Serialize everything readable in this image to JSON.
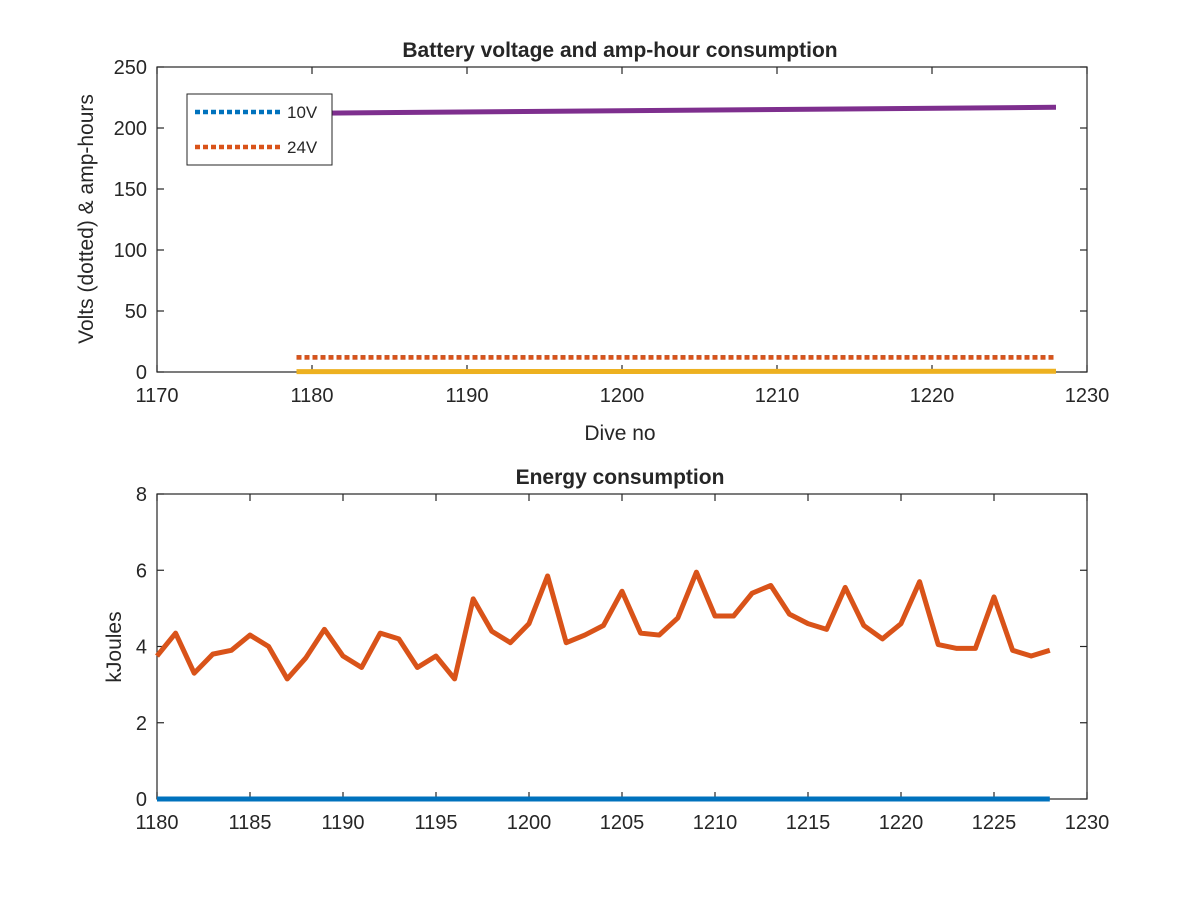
{
  "colors": {
    "background": "#ffffff",
    "axis": "#262626",
    "blue": "#0072BD",
    "orange": "#D95319",
    "yellow": "#EDB120",
    "purple": "#7E2F8E"
  },
  "chart_data": [
    {
      "type": "line",
      "title": "Battery voltage and amp-hour consumption",
      "xlabel": "Dive no",
      "ylabel": "Volts (dotted) & amp-hours",
      "xlim": [
        1170,
        1230
      ],
      "ylim": [
        0,
        250
      ],
      "xticks": [
        "1170",
        "1180",
        "1190",
        "1200",
        "1210",
        "1220",
        "1230"
      ],
      "yticks": [
        "0",
        "50",
        "100",
        "150",
        "200",
        "250"
      ],
      "grid": false,
      "legend": {
        "location": "top-left",
        "entries": [
          "10V",
          "24V"
        ]
      },
      "series": [
        {
          "name": "10V",
          "color": "#0072BD",
          "style": "dotted",
          "x": [
            1179,
            1228
          ],
          "values": [
            12,
            12
          ]
        },
        {
          "name": "24V",
          "color": "#D95319",
          "style": "dotted",
          "x": [
            1179,
            1228
          ],
          "values": [
            12,
            12
          ]
        },
        {
          "color": "#EDB120",
          "style": "solid",
          "x": [
            1179,
            1228
          ],
          "values": [
            0.3,
            0.6
          ]
        },
        {
          "color": "#7E2F8E",
          "style": "solid",
          "x": [
            1179,
            1228
          ],
          "values": [
            212,
            217
          ]
        }
      ]
    },
    {
      "type": "line",
      "title": "Energy consumption",
      "xlabel": "",
      "ylabel": "kJoules",
      "xlim": [
        1180,
        1230
      ],
      "ylim": [
        0,
        8
      ],
      "xticks": [
        "1180",
        "1185",
        "1190",
        "1195",
        "1200",
        "1205",
        "1210",
        "1215",
        "1220",
        "1225",
        "1230"
      ],
      "yticks": [
        "0",
        "2",
        "4",
        "6",
        "8"
      ],
      "grid": false,
      "x": [
        1180,
        1181,
        1182,
        1183,
        1184,
        1185,
        1186,
        1187,
        1188,
        1189,
        1190,
        1191,
        1192,
        1193,
        1194,
        1195,
        1196,
        1197,
        1198,
        1199,
        1200,
        1201,
        1202,
        1203,
        1204,
        1205,
        1206,
        1207,
        1208,
        1209,
        1210,
        1211,
        1212,
        1213,
        1214,
        1215,
        1216,
        1217,
        1218,
        1219,
        1220,
        1221,
        1222,
        1223,
        1224,
        1225,
        1226,
        1227,
        1228
      ],
      "series": [
        {
          "color": "#D95319",
          "style": "solid",
          "values": [
            3.75,
            4.35,
            3.3,
            3.8,
            3.9,
            4.3,
            4.0,
            3.15,
            3.7,
            4.45,
            3.75,
            3.45,
            4.35,
            4.2,
            3.45,
            3.75,
            3.15,
            5.25,
            4.4,
            4.1,
            4.6,
            5.85,
            4.1,
            4.3,
            4.55,
            5.45,
            4.35,
            4.3,
            4.75,
            5.95,
            4.8,
            4.8,
            5.4,
            5.6,
            4.85,
            4.6,
            4.45,
            5.55,
            4.55,
            4.2,
            4.6,
            5.7,
            4.05,
            3.95,
            3.95,
            5.3,
            3.9,
            3.75,
            3.9
          ]
        },
        {
          "color": "#0072BD",
          "style": "solid",
          "values": [
            0,
            0,
            0,
            0,
            0,
            0,
            0,
            0,
            0,
            0,
            0,
            0,
            0,
            0,
            0,
            0,
            0,
            0,
            0,
            0,
            0,
            0,
            0,
            0,
            0,
            0,
            0,
            0,
            0,
            0,
            0,
            0,
            0,
            0,
            0,
            0,
            0,
            0,
            0,
            0,
            0,
            0,
            0,
            0,
            0,
            0,
            0,
            0,
            0
          ]
        }
      ]
    }
  ]
}
